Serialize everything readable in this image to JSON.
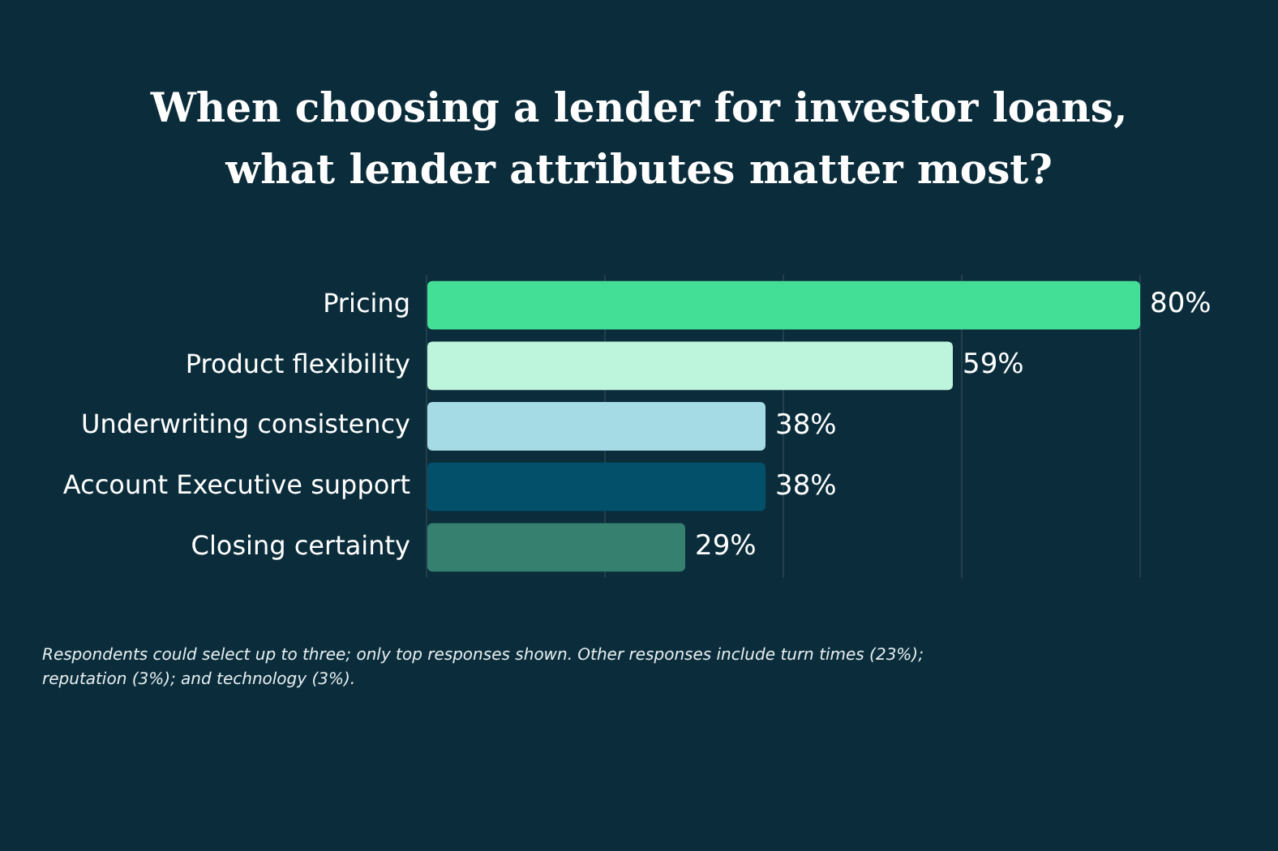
{
  "chart_data": {
    "type": "bar",
    "orientation": "horizontal",
    "title": "When choosing a lender for investor loans, what lender attributes matter most?",
    "categories": [
      "Pricing",
      "Product flexibility",
      "Underwriting consistency",
      "Account Executive support",
      "Closing certainty"
    ],
    "values": [
      80,
      59,
      38,
      38,
      29
    ],
    "colors": [
      "#43df97",
      "#bcf4dc",
      "#a4dbe5",
      "#02506a",
      "#35806f"
    ],
    "value_labels": [
      "80%",
      "59%",
      "38%",
      "38%",
      "29%"
    ],
    "xlim": [
      0,
      80
    ],
    "xticks": [
      {
        "value": 0,
        "label": null
      },
      {
        "value": 20,
        "label": null
      },
      {
        "value": 40,
        "label": null
      },
      {
        "value": 60,
        "label": null
      },
      {
        "value": 80,
        "label": null
      }
    ],
    "grid": "x",
    "tick_labels": false,
    "annotations": [
      "Respondents could select up to three; only top responses shown. Other responses include turn times (23%); reputation (3%); and technology (3%)."
    ]
  }
}
